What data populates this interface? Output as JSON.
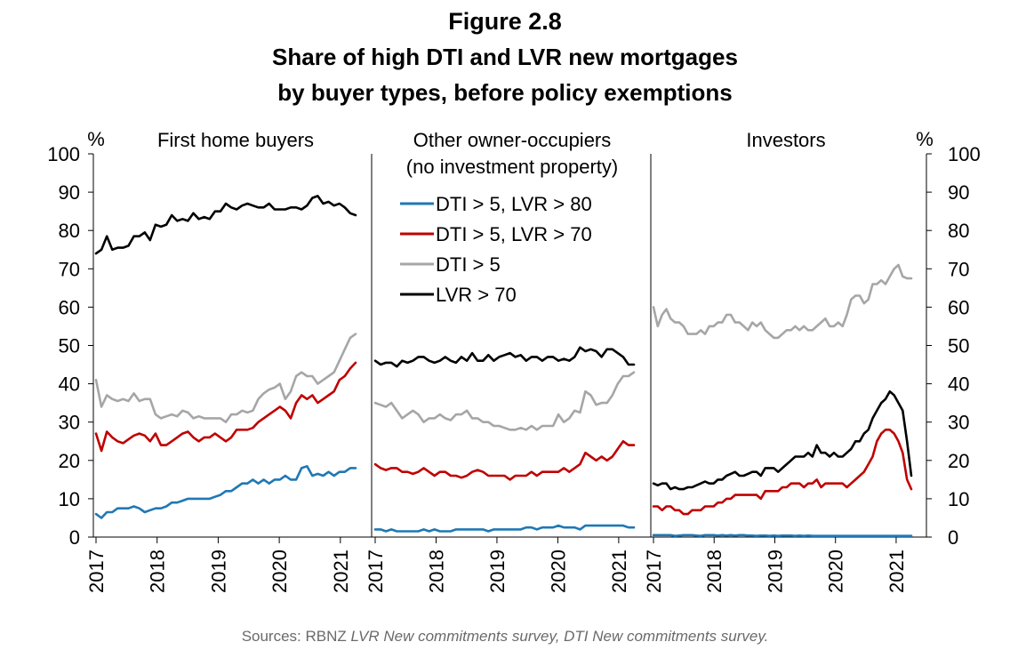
{
  "figure_number": "Figure 2.8",
  "title_line1": "Share of high DTI and LVR new mortgages",
  "title_line2": "by buyer types, before policy exemptions",
  "source": {
    "prefix": "Sources: RBNZ ",
    "italic": "LVR New commitments survey, DTI New commitments survey."
  },
  "colors": {
    "dti5_lvr80": "#1f78b4",
    "dti5_lvr70": "#c00000",
    "dti5": "#a6a6a6",
    "lvr70": "#000000"
  },
  "chart_data": {
    "type": "line",
    "left_axis_unit": "%",
    "right_axis_unit": "%",
    "ylim": [
      0,
      100
    ],
    "yticks": [
      0,
      10,
      20,
      30,
      40,
      50,
      60,
      70,
      80,
      90,
      100
    ],
    "xticks": [
      "2017",
      "2018",
      "2019",
      "2020",
      "2021"
    ],
    "xlim": [
      "2017-01",
      "2021-04"
    ],
    "legend": [
      {
        "key": "dti5_lvr80",
        "label": "DTI > 5, LVR > 80"
      },
      {
        "key": "dti5_lvr70",
        "label": "DTI > 5, LVR > 70"
      },
      {
        "key": "dti5",
        "label": "DTI > 5"
      },
      {
        "key": "lvr70",
        "label": "LVR > 70"
      }
    ],
    "panels": [
      {
        "title_lines": [
          "First home buyers"
        ],
        "series": [
          {
            "key": "lvr70",
            "values": [
              74,
              75,
              78.5,
              75,
              75.5,
              75.5,
              76,
              78.5,
              78.5,
              79.5,
              77.5,
              81.5,
              81,
              81.5,
              84,
              82.5,
              83,
              82.5,
              84.5,
              83,
              83.5,
              83,
              85,
              85,
              87,
              86,
              85.5,
              86.5,
              87,
              86.5,
              86,
              86,
              87,
              85.5,
              85.5,
              85.5,
              86,
              86,
              85.5,
              86.5,
              88.5,
              89,
              87,
              87.5,
              86.5,
              87,
              86,
              84.5,
              84
            ]
          },
          {
            "key": "dti5",
            "values": [
              41,
              34,
              37,
              36,
              35.5,
              36,
              35.5,
              37.5,
              35.5,
              36,
              36,
              32,
              31,
              31.5,
              32,
              31.5,
              33,
              32.5,
              31,
              31.5,
              31,
              31,
              31,
              31,
              30,
              32,
              32,
              33,
              32.5,
              33,
              36,
              37.5,
              38.5,
              39,
              40,
              36,
              38,
              42,
              43,
              42,
              42,
              40,
              41,
              42,
              43,
              46,
              49,
              52,
              53
            ]
          },
          {
            "key": "dti5_lvr70",
            "values": [
              27,
              22.5,
              27.5,
              26,
              25,
              24.5,
              25.5,
              26.5,
              27,
              26.5,
              25,
              27,
              24,
              24,
              25,
              26,
              27,
              27.5,
              26,
              25,
              26,
              26,
              27,
              26,
              25,
              26,
              28,
              28,
              28,
              28.5,
              30,
              31,
              32,
              33,
              34,
              33,
              31,
              35,
              37,
              36,
              37,
              35,
              36,
              37,
              38,
              41,
              42,
              44,
              45.5
            ]
          },
          {
            "key": "dti5_lvr80",
            "values": [
              6,
              5,
              6.5,
              6.5,
              7.5,
              7.5,
              7.5,
              8,
              7.5,
              6.5,
              7,
              7.5,
              7.5,
              8,
              9,
              9,
              9.5,
              10,
              10,
              10,
              10,
              10,
              10.5,
              11,
              12,
              12,
              13,
              14,
              14,
              15,
              14,
              15,
              14,
              15,
              15,
              16,
              15,
              15,
              18,
              18.5,
              16,
              16.5,
              16,
              17,
              16,
              17,
              17,
              18,
              18
            ]
          }
        ]
      },
      {
        "title_lines": [
          "Other owner-occupiers",
          "(no investment property)"
        ],
        "series": [
          {
            "key": "lvr70",
            "values": [
              46,
              45,
              45.5,
              45.5,
              44.5,
              46,
              45.5,
              46,
              47,
              47,
              46,
              45.5,
              46,
              47,
              46,
              45.5,
              47,
              46,
              48,
              46,
              46,
              47.5,
              46,
              47,
              47.5,
              48,
              47,
              47.5,
              46,
              47,
              47,
              46,
              47,
              47,
              46,
              46.5,
              46,
              47,
              49.5,
              48.5,
              49,
              48.5,
              47,
              49,
              49,
              48,
              47,
              45,
              45
            ]
          },
          {
            "key": "dti5",
            "values": [
              35,
              34.5,
              34,
              35,
              33,
              31,
              32,
              33,
              32,
              30,
              31,
              31,
              32,
              31,
              30.5,
              32,
              32,
              33,
              31,
              31,
              30,
              30,
              29,
              29,
              28.5,
              28,
              28,
              28.5,
              28,
              29,
              28,
              29,
              29,
              29,
              32,
              30,
              31,
              33,
              32.5,
              38,
              37,
              34.5,
              35,
              35,
              37,
              40,
              42,
              42,
              43
            ]
          },
          {
            "key": "dti5_lvr70",
            "values": [
              19,
              18,
              17.5,
              18,
              18,
              17,
              17,
              16.5,
              17,
              18,
              17,
              16,
              17,
              17,
              16,
              16,
              15.5,
              16,
              17,
              17.5,
              17,
              16,
              16,
              16,
              16,
              15,
              16,
              16,
              16,
              17,
              16,
              17,
              17,
              17,
              17,
              18,
              17,
              18,
              19,
              22,
              21,
              20,
              21,
              20,
              21,
              23,
              25,
              24,
              24
            ]
          },
          {
            "key": "dti5_lvr80",
            "values": [
              2,
              2,
              1.5,
              2,
              1.5,
              1.5,
              1.5,
              1.5,
              1.5,
              2,
              1.5,
              2,
              1.5,
              1.5,
              1.5,
              2,
              2,
              2,
              2,
              2,
              2,
              1.5,
              2,
              2,
              2,
              2,
              2,
              2,
              2.5,
              2.5,
              2,
              2.5,
              2.5,
              2.5,
              3,
              2.5,
              2.5,
              2.5,
              2,
              3,
              3,
              3,
              3,
              3,
              3,
              3,
              3,
              2.5,
              2.5
            ]
          }
        ]
      },
      {
        "title_lines": [
          "Investors"
        ],
        "series": [
          {
            "key": "dti5",
            "values": [
              60,
              55,
              58,
              59.5,
              57,
              56,
              56,
              55,
              53,
              53,
              53,
              54,
              53,
              55,
              55,
              56,
              56,
              58,
              58,
              56,
              56,
              55,
              54,
              56,
              55,
              56,
              54,
              53,
              52,
              52,
              53,
              54,
              54,
              55,
              54,
              55,
              54,
              54,
              55,
              56,
              57,
              55,
              55,
              56,
              55,
              58,
              62,
              63,
              63,
              61,
              62,
              66,
              66,
              67,
              66,
              68,
              70,
              71,
              68,
              67.5,
              67.5
            ]
          },
          {
            "key": "lvr70",
            "values": [
              14,
              13.5,
              14,
              14,
              12.5,
              13,
              12.5,
              12.5,
              13,
              13,
              13.5,
              14,
              14.5,
              14,
              14,
              15,
              15,
              16,
              16.5,
              17,
              16,
              16,
              16.5,
              17,
              17,
              16,
              18,
              18,
              18,
              17,
              18,
              19,
              20,
              21,
              21,
              21,
              22,
              21,
              24,
              22,
              22,
              21,
              22,
              21,
              21,
              22,
              23,
              25,
              25,
              27,
              28,
              31,
              33,
              35,
              36,
              38,
              37,
              35,
              33,
              25,
              16
            ]
          },
          {
            "key": "dti5_lvr70",
            "values": [
              8,
              8,
              7,
              8,
              8,
              7,
              7,
              6,
              6,
              7,
              7,
              7,
              8,
              8,
              8,
              9,
              9,
              10,
              10,
              11,
              11,
              11,
              11,
              11,
              11,
              10,
              12,
              12,
              12,
              12,
              13,
              13,
              14,
              14,
              14,
              13,
              14,
              14,
              15,
              13,
              14,
              14,
              14,
              14,
              14,
              13,
              14,
              15,
              16,
              17,
              19,
              21,
              25,
              27,
              28,
              28,
              27,
              25,
              22,
              15,
              12.5
            ]
          },
          {
            "key": "dti5_lvr80",
            "values": [
              0.5,
              0.5,
              0.5,
              0.5,
              0.5,
              0.3,
              0.4,
              0.5,
              0.5,
              0.5,
              0.4,
              0.3,
              0.5,
              0.5,
              0.5,
              0.4,
              0.5,
              0.4,
              0.5,
              0.4,
              0.5,
              0.5,
              0.4,
              0.4,
              0.3,
              0.4,
              0.4,
              0.3,
              0.4,
              0.3,
              0.4,
              0.4,
              0.4,
              0.3,
              0.4,
              0.3,
              0.4,
              0.3,
              0.3,
              0.3,
              0.3,
              0.3,
              0.3,
              0.3,
              0.3,
              0.3,
              0.3,
              0.3,
              0.3,
              0.3,
              0.3,
              0.3,
              0.3,
              0.3,
              0.3,
              0.3,
              0.3,
              0.3,
              0.3,
              0.3,
              0.3
            ]
          }
        ]
      }
    ]
  }
}
